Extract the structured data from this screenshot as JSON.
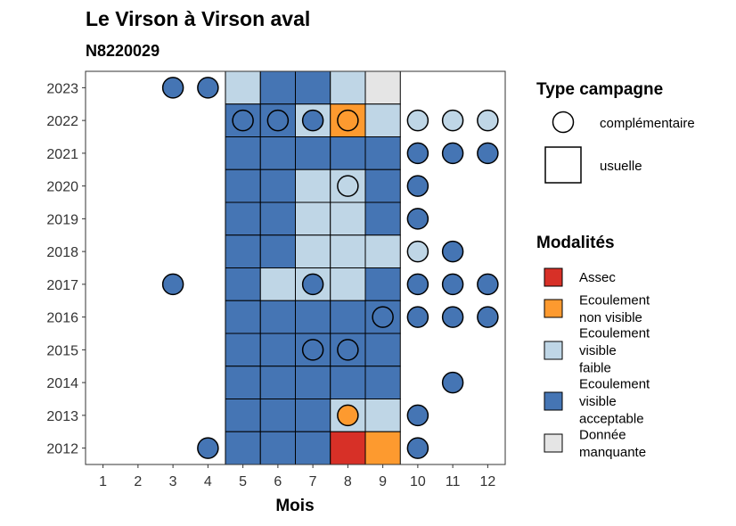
{
  "chart_data": {
    "type": "heatmap",
    "title": "Le Virson à Virson aval",
    "subtitle": "N8220029",
    "xlabel": "Mois",
    "ylabel": "",
    "x_ticks": [
      1,
      2,
      3,
      4,
      5,
      6,
      7,
      8,
      9,
      10,
      11,
      12
    ],
    "y_ticks": [
      2012,
      2013,
      2014,
      2015,
      2016,
      2017,
      2018,
      2019,
      2020,
      2021,
      2022,
      2023
    ],
    "legend_type": {
      "title": "Type campagne",
      "items": [
        {
          "key": "complementaire",
          "label": "complémentaire",
          "shape": "circle"
        },
        {
          "key": "usuelle",
          "label": "usuelle",
          "shape": "square"
        }
      ]
    },
    "legend_modalites": {
      "title": "Modalités",
      "items": [
        {
          "key": "assec",
          "label_lines": [
            "Assec"
          ],
          "color": "#d73027"
        },
        {
          "key": "nonvisible",
          "label_lines": [
            "Ecoulement",
            "non visible"
          ],
          "color": "#fd9a2f"
        },
        {
          "key": "faible",
          "label_lines": [
            "Ecoulement",
            "visible",
            "faible"
          ],
          "color": "#bfd6e6"
        },
        {
          "key": "acceptable",
          "label_lines": [
            "Ecoulement",
            "visible",
            "acceptable"
          ],
          "color": "#4575b4"
        },
        {
          "key": "manquante",
          "label_lines": [
            "Donnée",
            "manquante"
          ],
          "color": "#e5e5e5"
        }
      ]
    },
    "usuelle": [
      {
        "year": 2023,
        "month": 5,
        "m": "faible"
      },
      {
        "year": 2023,
        "month": 6,
        "m": "acceptable"
      },
      {
        "year": 2023,
        "month": 7,
        "m": "acceptable"
      },
      {
        "year": 2023,
        "month": 8,
        "m": "faible"
      },
      {
        "year": 2023,
        "month": 9,
        "m": "manquante"
      },
      {
        "year": 2022,
        "month": 5,
        "m": "acceptable"
      },
      {
        "year": 2022,
        "month": 6,
        "m": "acceptable"
      },
      {
        "year": 2022,
        "month": 7,
        "m": "faible"
      },
      {
        "year": 2022,
        "month": 8,
        "m": "nonvisible"
      },
      {
        "year": 2022,
        "month": 9,
        "m": "faible"
      },
      {
        "year": 2021,
        "month": 5,
        "m": "acceptable"
      },
      {
        "year": 2021,
        "month": 6,
        "m": "acceptable"
      },
      {
        "year": 2021,
        "month": 7,
        "m": "acceptable"
      },
      {
        "year": 2021,
        "month": 8,
        "m": "acceptable"
      },
      {
        "year": 2021,
        "month": 9,
        "m": "acceptable"
      },
      {
        "year": 2020,
        "month": 5,
        "m": "acceptable"
      },
      {
        "year": 2020,
        "month": 6,
        "m": "acceptable"
      },
      {
        "year": 2020,
        "month": 7,
        "m": "faible"
      },
      {
        "year": 2020,
        "month": 8,
        "m": "faible"
      },
      {
        "year": 2020,
        "month": 9,
        "m": "acceptable"
      },
      {
        "year": 2019,
        "month": 5,
        "m": "acceptable"
      },
      {
        "year": 2019,
        "month": 6,
        "m": "acceptable"
      },
      {
        "year": 2019,
        "month": 7,
        "m": "faible"
      },
      {
        "year": 2019,
        "month": 8,
        "m": "faible"
      },
      {
        "year": 2019,
        "month": 9,
        "m": "acceptable"
      },
      {
        "year": 2018,
        "month": 5,
        "m": "acceptable"
      },
      {
        "year": 2018,
        "month": 6,
        "m": "acceptable"
      },
      {
        "year": 2018,
        "month": 7,
        "m": "faible"
      },
      {
        "year": 2018,
        "month": 8,
        "m": "faible"
      },
      {
        "year": 2018,
        "month": 9,
        "m": "faible"
      },
      {
        "year": 2017,
        "month": 5,
        "m": "acceptable"
      },
      {
        "year": 2017,
        "month": 6,
        "m": "faible"
      },
      {
        "year": 2017,
        "month": 7,
        "m": "faible"
      },
      {
        "year": 2017,
        "month": 8,
        "m": "faible"
      },
      {
        "year": 2017,
        "month": 9,
        "m": "acceptable"
      },
      {
        "year": 2016,
        "month": 5,
        "m": "acceptable"
      },
      {
        "year": 2016,
        "month": 6,
        "m": "acceptable"
      },
      {
        "year": 2016,
        "month": 7,
        "m": "acceptable"
      },
      {
        "year": 2016,
        "month": 8,
        "m": "acceptable"
      },
      {
        "year": 2016,
        "month": 9,
        "m": "acceptable"
      },
      {
        "year": 2015,
        "month": 5,
        "m": "acceptable"
      },
      {
        "year": 2015,
        "month": 6,
        "m": "acceptable"
      },
      {
        "year": 2015,
        "month": 7,
        "m": "acceptable"
      },
      {
        "year": 2015,
        "month": 8,
        "m": "acceptable"
      },
      {
        "year": 2015,
        "month": 9,
        "m": "acceptable"
      },
      {
        "year": 2014,
        "month": 5,
        "m": "acceptable"
      },
      {
        "year": 2014,
        "month": 6,
        "m": "acceptable"
      },
      {
        "year": 2014,
        "month": 7,
        "m": "acceptable"
      },
      {
        "year": 2014,
        "month": 8,
        "m": "acceptable"
      },
      {
        "year": 2014,
        "month": 9,
        "m": "acceptable"
      },
      {
        "year": 2013,
        "month": 5,
        "m": "acceptable"
      },
      {
        "year": 2013,
        "month": 6,
        "m": "acceptable"
      },
      {
        "year": 2013,
        "month": 7,
        "m": "acceptable"
      },
      {
        "year": 2013,
        "month": 8,
        "m": "faible"
      },
      {
        "year": 2013,
        "month": 9,
        "m": "faible"
      },
      {
        "year": 2012,
        "month": 5,
        "m": "acceptable"
      },
      {
        "year": 2012,
        "month": 6,
        "m": "acceptable"
      },
      {
        "year": 2012,
        "month": 7,
        "m": "acceptable"
      },
      {
        "year": 2012,
        "month": 8,
        "m": "assec"
      },
      {
        "year": 2012,
        "month": 9,
        "m": "nonvisible"
      }
    ],
    "complementaire": [
      {
        "year": 2023,
        "month": 3,
        "m": "acceptable"
      },
      {
        "year": 2023,
        "month": 4,
        "m": "acceptable"
      },
      {
        "year": 2022,
        "month": 5,
        "m": "acceptable"
      },
      {
        "year": 2022,
        "month": 6,
        "m": "acceptable"
      },
      {
        "year": 2022,
        "month": 7,
        "m": "acceptable"
      },
      {
        "year": 2022,
        "month": 8,
        "m": "nonvisible"
      },
      {
        "year": 2022,
        "month": 10,
        "m": "faible"
      },
      {
        "year": 2022,
        "month": 11,
        "m": "faible"
      },
      {
        "year": 2022,
        "month": 12,
        "m": "faible"
      },
      {
        "year": 2021,
        "month": 10,
        "m": "acceptable"
      },
      {
        "year": 2021,
        "month": 11,
        "m": "acceptable"
      },
      {
        "year": 2021,
        "month": 12,
        "m": "acceptable"
      },
      {
        "year": 2020,
        "month": 8,
        "m": "faible"
      },
      {
        "year": 2020,
        "month": 10,
        "m": "acceptable"
      },
      {
        "year": 2019,
        "month": 10,
        "m": "acceptable"
      },
      {
        "year": 2018,
        "month": 10,
        "m": "faible"
      },
      {
        "year": 2018,
        "month": 11,
        "m": "acceptable"
      },
      {
        "year": 2017,
        "month": 3,
        "m": "acceptable"
      },
      {
        "year": 2017,
        "month": 7,
        "m": "acceptable"
      },
      {
        "year": 2017,
        "month": 10,
        "m": "acceptable"
      },
      {
        "year": 2017,
        "month": 11,
        "m": "acceptable"
      },
      {
        "year": 2017,
        "month": 12,
        "m": "acceptable"
      },
      {
        "year": 2016,
        "month": 9,
        "m": "acceptable"
      },
      {
        "year": 2016,
        "month": 10,
        "m": "acceptable"
      },
      {
        "year": 2016,
        "month": 11,
        "m": "acceptable"
      },
      {
        "year": 2016,
        "month": 12,
        "m": "acceptable"
      },
      {
        "year": 2015,
        "month": 7,
        "m": "acceptable"
      },
      {
        "year": 2015,
        "month": 8,
        "m": "acceptable"
      },
      {
        "year": 2014,
        "month": 11,
        "m": "acceptable"
      },
      {
        "year": 2013,
        "month": 8,
        "m": "nonvisible"
      },
      {
        "year": 2013,
        "month": 10,
        "m": "acceptable"
      },
      {
        "year": 2012,
        "month": 4,
        "m": "acceptable"
      },
      {
        "year": 2012,
        "month": 10,
        "m": "acceptable"
      }
    ]
  }
}
